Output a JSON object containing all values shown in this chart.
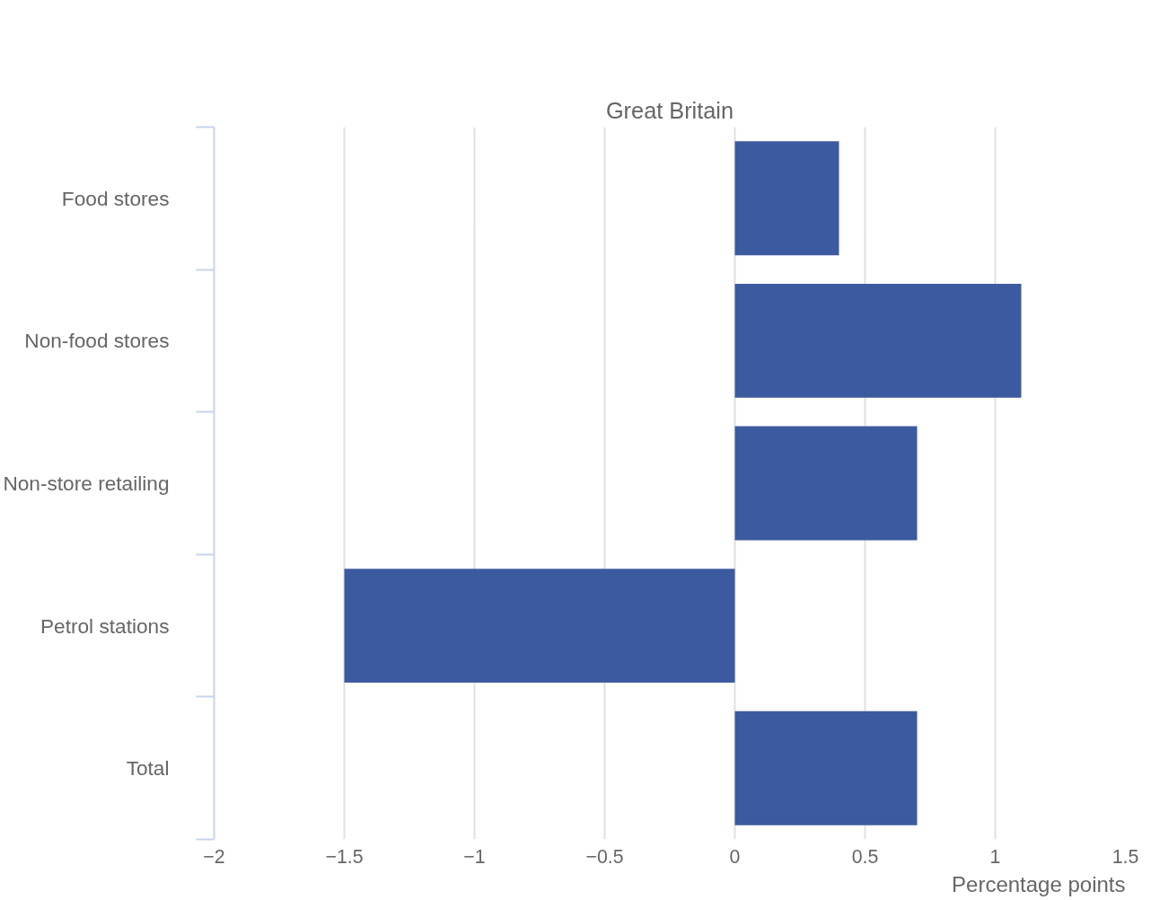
{
  "chart_data": {
    "type": "bar",
    "orientation": "horizontal",
    "title": "Great Britain",
    "xlabel": "Percentage points",
    "categories": [
      "Food stores",
      "Non-food stores",
      "Non-store retailing",
      "Petrol stations",
      "Total"
    ],
    "values": [
      0.4,
      1.1,
      0.7,
      -1.5,
      0.7
    ],
    "color": "#3c5a9f",
    "xlim": [
      -2,
      1.5
    ],
    "xticks": [
      -2,
      -1.5,
      -1,
      -0.5,
      0,
      0.5,
      1,
      1.5
    ],
    "grid": "x"
  }
}
